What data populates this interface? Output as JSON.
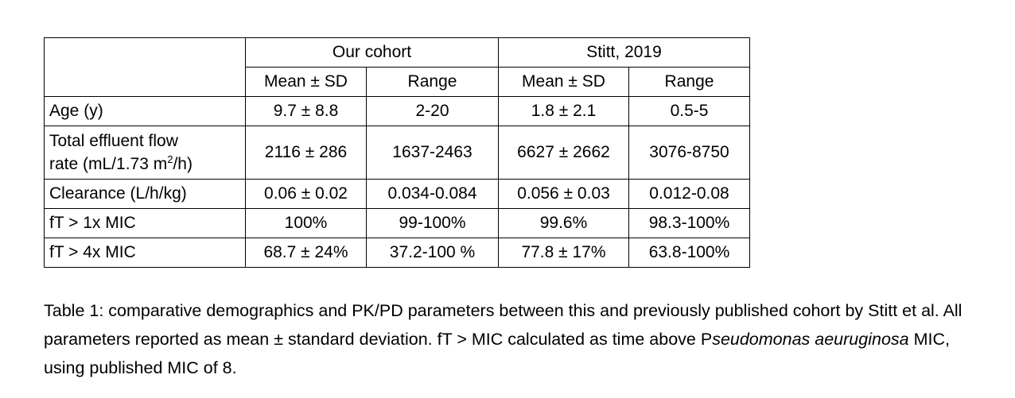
{
  "table": {
    "group_headers": [
      "Our cohort",
      "Stitt, 2019"
    ],
    "sub_headers": [
      "Mean ± SD",
      "Range",
      "Mean ± SD",
      "Range"
    ],
    "rows": [
      {
        "label": "Age (y)",
        "values": [
          "9.7 ± 8.8",
          "2-20",
          "1.8 ± 2.1",
          "0.5-5"
        ]
      },
      {
        "label_line1": "Total effluent flow",
        "label_line2_pre": "rate (mL/1.73 m",
        "label_sup": "2",
        "label_line2_post": "/h)",
        "values": [
          "2116 ± 286",
          "1637-2463",
          "6627 ± 2662",
          "3076-8750"
        ]
      },
      {
        "label": "Clearance (L/h/kg)",
        "values": [
          "0.06 ± 0.02",
          "0.034-0.084",
          "0.056 ± 0.03",
          "0.012-0.08"
        ]
      },
      {
        "label": "fT > 1x MIC",
        "values": [
          "100%",
          "99-100%",
          "99.6%",
          "98.3-100%"
        ]
      },
      {
        "label": "fT > 4x MIC",
        "values": [
          "68.7 ± 24%",
          "37.2-100 %",
          "77.8 ± 17%",
          "63.8-100%"
        ]
      }
    ]
  },
  "caption": {
    "part1": "Table 1: comparative demographics and PK/PD parameters between this and previously published cohort by Stitt et al. All parameters reported as mean ± standard deviation. fT > MIC calculated as time above P",
    "italic": "seudomonas aeuruginosa",
    "part2": " MIC, using published MIC of 8."
  }
}
